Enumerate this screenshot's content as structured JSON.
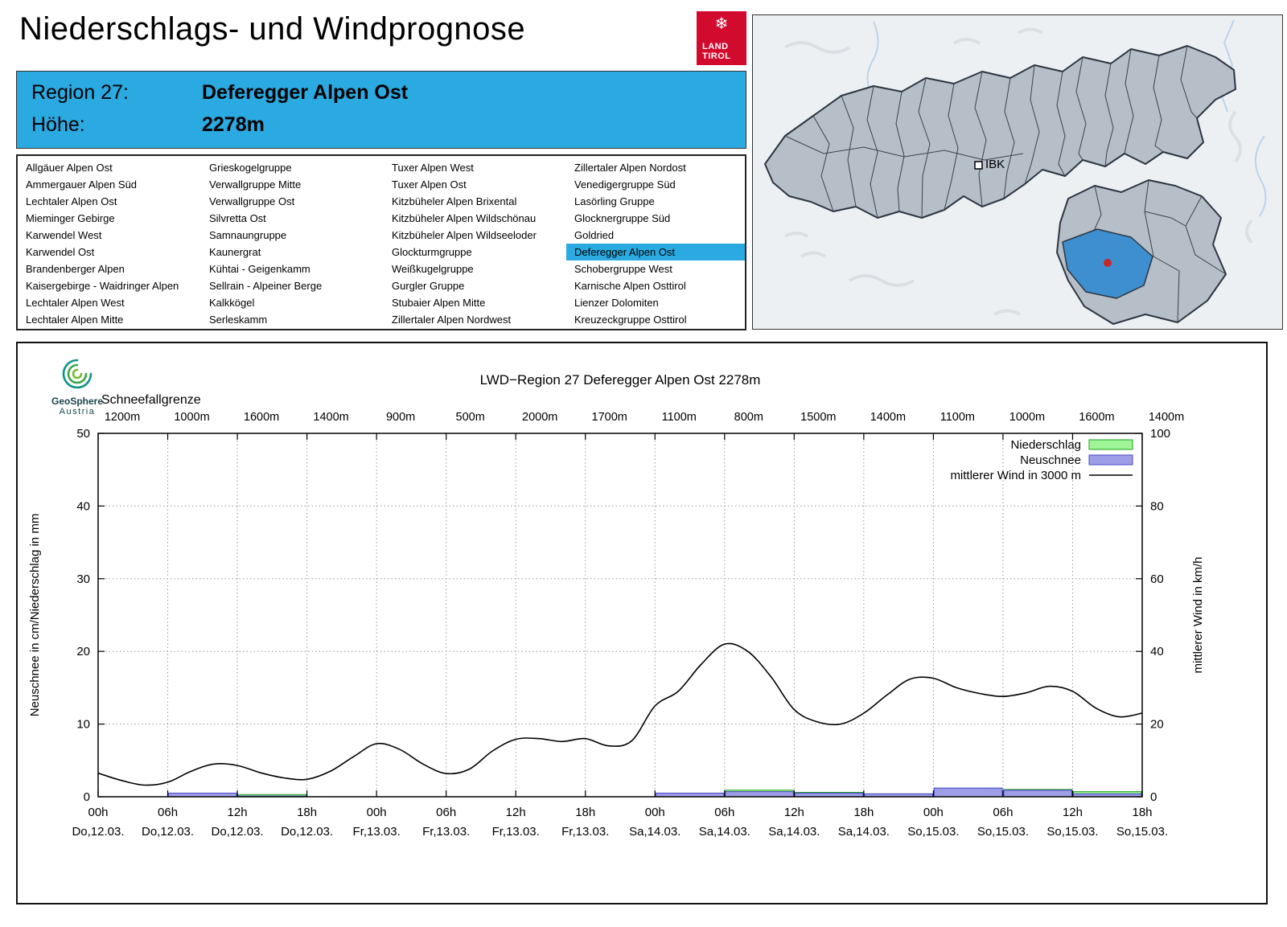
{
  "header": {
    "title": "Niederschlags- und Windprognose",
    "logo": {
      "line1": "LAND",
      "line2": "TIROL",
      "icon": "snowflake",
      "color": "#d20a2e"
    }
  },
  "region_info": {
    "region_label": "Region 27:",
    "region_name": "Deferegger Alpen Ost",
    "altitude_label": "Höhe:",
    "altitude_value": "2278m",
    "accent_color": "#2ba9e1"
  },
  "region_list": {
    "selected": "Deferegger Alpen Ost",
    "columns": [
      [
        "Allgäuer Alpen Ost",
        "Ammergauer Alpen Süd",
        "Lechtaler Alpen Ost",
        "Mieminger Gebirge",
        "Karwendel West",
        "Karwendel Ost",
        "Brandenberger Alpen",
        "Kaisergebirge - Waidringer Alpen",
        "Lechtaler Alpen West",
        "Lechtaler Alpen Mitte"
      ],
      [
        "Grieskogelgruppe",
        "Verwallgruppe Mitte",
        "Verwallgruppe Ost",
        "Silvretta Ost",
        "Samnaungruppe",
        "Kaunergrat",
        "Kühtai - Geigenkamm",
        "Sellrain - Alpeiner Berge",
        "Kalkkögel",
        "Serleskamm"
      ],
      [
        "Tuxer Alpen West",
        "Tuxer Alpen Ost",
        "Kitzbüheler Alpen Brixental",
        "Kitzbüheler Alpen Wildschönau",
        "Kitzbüheler Alpen Wildseeloder",
        "Glockturmgruppe",
        "Weißkugelgruppe",
        "Gurgler Gruppe",
        "Stubaier Alpen Mitte",
        "Zillertaler Alpen Nordwest"
      ],
      [
        "Zillertaler Alpen Nordost",
        "Venedigergruppe Süd",
        "Lasörling Gruppe",
        "Glocknergruppe Süd",
        "Goldried",
        "Deferegger Alpen Ost",
        "Schobergruppe West",
        "Karnische Alpen Osttirol",
        "Lienzer Dolomiten",
        "Kreuzeckgruppe Osttirol"
      ]
    ]
  },
  "map": {
    "city_label": "IBK",
    "highlight_color": "#3e8fd0",
    "marker_color": "#c62828"
  },
  "chart_data": {
    "type": "line+bar",
    "title": "LWD−Region 27 Deferegger Alpen Ost 2278m",
    "source": {
      "line1": "GeoSphere",
      "line2": "Austria"
    },
    "snowline_label": "Schneefallgrenze",
    "snowline_values": [
      "1200m",
      "1000m",
      "1600m",
      "1400m",
      "900m",
      "500m",
      "2000m",
      "1700m",
      "1100m",
      "800m",
      "1500m",
      "1400m",
      "1100m",
      "1000m",
      "1600m",
      "1400m"
    ],
    "ylabel_left": "Neuschnee in cm/Niederschlag in mm",
    "ylabel_right": "mittlerer Wind in km/h",
    "ylim_left": [
      0,
      50
    ],
    "ylim_right": [
      0,
      100
    ],
    "yticks_left": [
      0,
      10,
      20,
      30,
      40,
      50
    ],
    "yticks_right": [
      0,
      20,
      40,
      60,
      80,
      100
    ],
    "x_range_hours": [
      0,
      90
    ],
    "grid": true,
    "legend_position": "top-right",
    "xticks": [
      {
        "hour": "00h",
        "date": "Do,12.03."
      },
      {
        "hour": "06h",
        "date": "Do,12.03."
      },
      {
        "hour": "12h",
        "date": "Do,12.03."
      },
      {
        "hour": "18h",
        "date": "Do,12.03."
      },
      {
        "hour": "00h",
        "date": "Fr,13.03."
      },
      {
        "hour": "06h",
        "date": "Fr,13.03."
      },
      {
        "hour": "12h",
        "date": "Fr,13.03."
      },
      {
        "hour": "18h",
        "date": "Fr,13.03."
      },
      {
        "hour": "00h",
        "date": "Sa,14.03."
      },
      {
        "hour": "06h",
        "date": "Sa,14.03."
      },
      {
        "hour": "12h",
        "date": "Sa,14.03."
      },
      {
        "hour": "18h",
        "date": "Sa,14.03."
      },
      {
        "hour": "00h",
        "date": "So,15.03."
      },
      {
        "hour": "06h",
        "date": "So,15.03."
      },
      {
        "hour": "12h",
        "date": "So,15.03."
      },
      {
        "hour": "18h",
        "date": "So,15.03."
      }
    ],
    "legend": [
      {
        "label": "Niederschlag",
        "type": "bar",
        "fill": "#9df595",
        "border": "#18a018"
      },
      {
        "label": "Neuschnee",
        "type": "bar",
        "fill": "#9e9ee8",
        "border": "#4848c8"
      },
      {
        "label": "mittlerer Wind in 3000 m",
        "type": "line",
        "color": "#000000"
      }
    ],
    "colors": {
      "niederschlag_fill": "#9df595",
      "niederschlag_border": "#18a018",
      "neuschnee_fill": "#9e9ee8",
      "neuschnee_border": "#4848c8",
      "wind_line": "#000000"
    },
    "bars": {
      "interval_hours": 6,
      "starts": [
        0,
        6,
        12,
        18,
        24,
        30,
        36,
        42,
        48,
        54,
        60,
        66,
        72,
        78,
        84
      ],
      "niederschlag_mm": [
        0,
        0.4,
        0.3,
        0,
        0,
        0,
        0,
        0,
        0.5,
        0.9,
        0.6,
        0.4,
        0.5,
        1.0,
        0.7
      ],
      "neuschnee_cm": [
        0,
        0.5,
        0.1,
        0,
        0,
        0,
        0,
        0,
        0.5,
        0.7,
        0.5,
        0.4,
        1.2,
        0.9,
        0.4
      ]
    },
    "wind_line": {
      "units": "km/h",
      "x_hours": [
        0,
        2,
        4,
        6,
        8,
        10,
        12,
        14,
        16,
        18,
        20,
        22,
        24,
        26,
        28,
        30,
        32,
        34,
        36,
        38,
        40,
        42,
        44,
        46,
        48,
        50,
        52,
        54,
        56,
        58,
        60,
        62,
        64,
        66,
        68,
        70,
        72,
        74,
        76,
        78,
        80,
        82,
        84,
        86,
        88,
        90
      ],
      "kmh": [
        6.5,
        4.5,
        3.2,
        4.0,
        7.0,
        9.0,
        8.6,
        6.6,
        5.2,
        4.8,
        7.0,
        11.0,
        14.6,
        13.0,
        9.0,
        6.4,
        7.6,
        12.6,
        15.8,
        16.0,
        15.2,
        16.0,
        14.0,
        15.4,
        25.0,
        29.0,
        36.5,
        42.0,
        40.0,
        33.0,
        24.0,
        20.6,
        20.0,
        23.0,
        28.0,
        32.4,
        32.6,
        30.0,
        28.4,
        27.6,
        28.6,
        30.4,
        29.0,
        24.4,
        22.0,
        23.0
      ]
    }
  }
}
